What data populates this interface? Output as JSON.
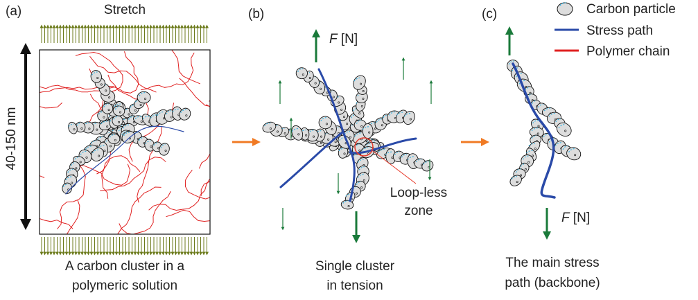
{
  "panels": [
    {
      "label": "(a)",
      "top_label": "Stretch",
      "scale_label": "40-150 nm",
      "caption": [
        "A carbon cluster in a",
        "polymeric solution"
      ]
    },
    {
      "label": "(b)",
      "force_label": {
        "symbol": "F",
        "unit": "[N]"
      },
      "annotation": [
        "Loop-less",
        "zone"
      ],
      "caption": [
        "Single cluster",
        "in tension"
      ]
    },
    {
      "label": "(c)",
      "force_label": {
        "symbol": "F",
        "unit": "[N]"
      },
      "caption": [
        "The main stress",
        "path (backbone)"
      ]
    }
  ],
  "legend": [
    {
      "label": "Carbon particle"
    },
    {
      "label": "Stress path"
    },
    {
      "label": "Polymer chain"
    }
  ]
}
